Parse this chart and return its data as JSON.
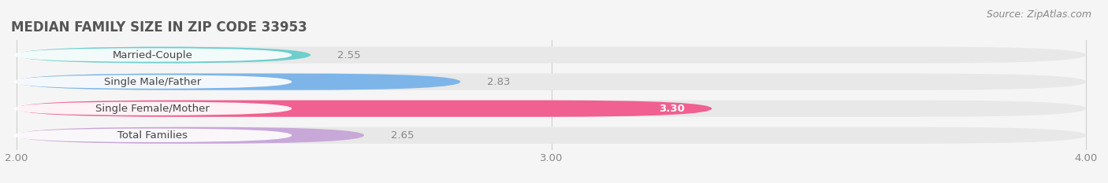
{
  "title": "MEDIAN FAMILY SIZE IN ZIP CODE 33953",
  "source": "Source: ZipAtlas.com",
  "categories": [
    "Married-Couple",
    "Single Male/Father",
    "Single Female/Mother",
    "Total Families"
  ],
  "values": [
    2.55,
    2.83,
    3.3,
    2.65
  ],
  "value_labels": [
    "2.55",
    "2.83",
    "3.30",
    "2.65"
  ],
  "bar_colors": [
    "#6dcece",
    "#7db5e8",
    "#f06090",
    "#c8a8d8"
  ],
  "bg_bar_color": "#e8e8e8",
  "xmin": 2.0,
  "xmax": 4.0,
  "xticks": [
    2.0,
    3.0,
    4.0
  ],
  "xtick_labels": [
    "2.00",
    "3.00",
    "4.00"
  ],
  "title_fontsize": 12,
  "label_fontsize": 9.5,
  "value_fontsize": 9.5,
  "source_fontsize": 9,
  "background_color": "#f5f5f5",
  "bar_height": 0.62,
  "label_color": "#444444",
  "grid_color": "#d0d0d0"
}
